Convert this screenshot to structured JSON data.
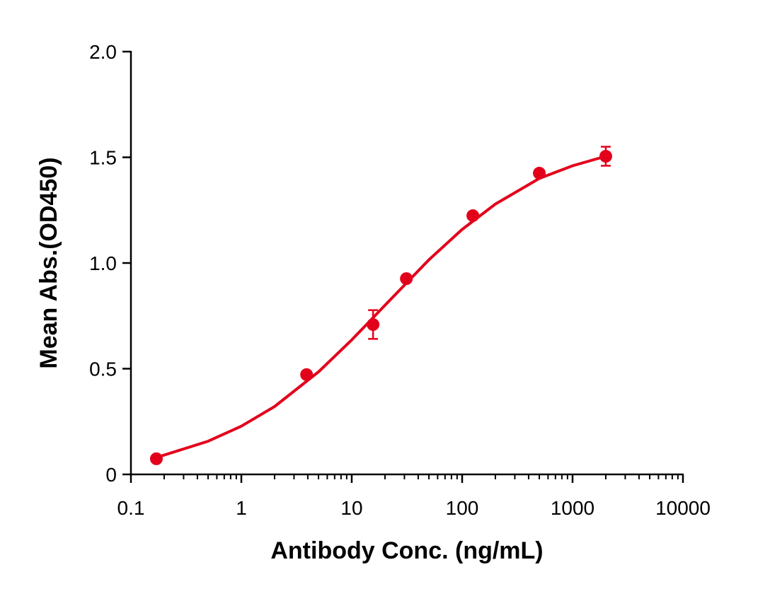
{
  "chart_data": {
    "type": "scatter",
    "x_label": "Antibody Conc. (ng/mL)",
    "y_label": "Mean Abs.(OD450)",
    "x_scale": "log",
    "xlim": [
      0.1,
      10000
    ],
    "xticks": [
      0.1,
      1,
      10,
      100,
      1000,
      10000
    ],
    "ylim": [
      0,
      2
    ],
    "yticks": [
      0,
      {
        "value": 0.5,
        "label": "0.5"
      },
      {
        "value": 1,
        "label": "1.0"
      },
      {
        "value": 1.5,
        "label": "1.5"
      },
      {
        "value": 2,
        "label": "2.0"
      }
    ],
    "color": "#e3001b",
    "x": [
      0.17,
      3.9,
      15.6,
      31.25,
      125,
      500,
      2000
    ],
    "values": [
      0.074,
      0.472,
      0.709,
      0.926,
      1.224,
      1.425,
      1.505
    ],
    "errors": [
      0.01,
      0.01,
      0.068,
      0.01,
      0.01,
      0.01,
      0.045
    ],
    "fit": {
      "x": [
        0.17,
        0.5,
        1,
        2,
        5,
        10,
        20,
        50,
        100,
        200,
        500,
        1000,
        2000
      ],
      "values": [
        0.08,
        0.157,
        0.228,
        0.321,
        0.485,
        0.636,
        0.8,
        1.015,
        1.159,
        1.279,
        1.4,
        1.46,
        1.505
      ]
    }
  }
}
